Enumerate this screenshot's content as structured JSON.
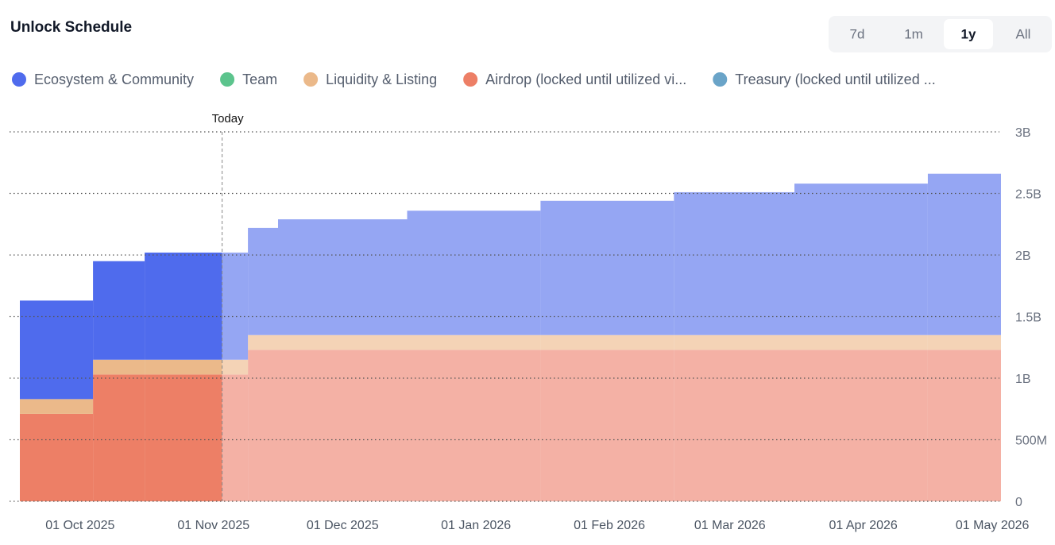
{
  "chart_data": {
    "type": "stacked_step_area",
    "title": "Unlock Schedule",
    "today": "2025-11-03",
    "today_label": "Today",
    "x": [
      "2025-09-17",
      "2025-10-04",
      "2025-10-16",
      "2025-11-03",
      "2025-11-09",
      "2025-11-16",
      "2025-12-16",
      "2026-01-16",
      "2026-02-16",
      "2026-03-16",
      "2026-04-16"
    ],
    "xlim": [
      "2025-09-17",
      "2026-05-03"
    ],
    "xticks": [
      {
        "value": "2025-10-01",
        "label": "01 Oct 2025"
      },
      {
        "value": "2025-11-01",
        "label": "01 Nov 2025"
      },
      {
        "value": "2025-12-01",
        "label": "01 Dec 2025"
      },
      {
        "value": "2026-01-01",
        "label": "01 Jan 2026"
      },
      {
        "value": "2026-02-01",
        "label": "01 Feb 2026"
      },
      {
        "value": "2026-03-01",
        "label": "01 Mar 2026"
      },
      {
        "value": "2026-04-01",
        "label": "01 Apr 2026"
      },
      {
        "value": "2026-05-01",
        "label": "01 May 2026"
      }
    ],
    "ylim": [
      0,
      3000000000
    ],
    "yticks": [
      0,
      {
        "value": 500000000,
        "label": "500M"
      },
      {
        "value": 1000000000,
        "label": "1B"
      },
      {
        "value": 1500000000,
        "label": "1.5B"
      },
      {
        "value": 2000000000,
        "label": "2B"
      },
      {
        "value": 2500000000,
        "label": "2.5B"
      },
      {
        "value": 3000000000,
        "label": "3B"
      }
    ],
    "grid": true,
    "series": [
      {
        "name": "Ecosystem & Community",
        "color": "#4f6bed",
        "future_color": "#95a6f3",
        "values": [
          800000000,
          800000000,
          870000000,
          870000000,
          870000000,
          940000000,
          1010000000,
          1090000000,
          1160000000,
          1230000000,
          1310000000
        ]
      },
      {
        "name": "Team",
        "color": "#5cc48d",
        "future_color": "#a6e0c1",
        "values": [
          0,
          0,
          0,
          0,
          0,
          0,
          0,
          0,
          0,
          0,
          0
        ]
      },
      {
        "name": "Liquidity & Listing",
        "color": "#ebb98a",
        "future_color": "#f4d3b6",
        "values": [
          120000000,
          120000000,
          120000000,
          120000000,
          120000000,
          120000000,
          120000000,
          120000000,
          120000000,
          120000000,
          120000000
        ]
      },
      {
        "name": "Airdrop (locked until utilized vi...",
        "color": "#ed7f66",
        "future_color": "#f4b1a5",
        "values": [
          710000000,
          1030000000,
          1030000000,
          1030000000,
          1230000000,
          1230000000,
          1230000000,
          1230000000,
          1230000000,
          1230000000,
          1230000000
        ]
      },
      {
        "name": "Treasury (locked until utilized ...",
        "color": "#6aa4c8",
        "future_color": "#a9cbe0",
        "values": [
          0,
          0,
          0,
          0,
          0,
          0,
          0,
          0,
          0,
          0,
          0
        ]
      }
    ]
  },
  "range_options": [
    "7d",
    "1m",
    "1y",
    "All"
  ],
  "selected_range_index": 2
}
